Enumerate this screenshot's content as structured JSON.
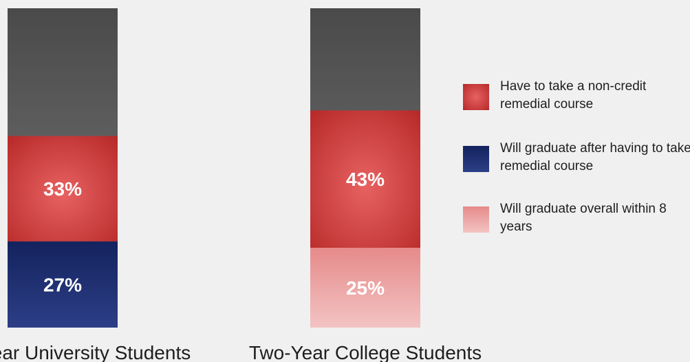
{
  "chart_data": {
    "type": "bar",
    "stacked": true,
    "categories": [
      "Four-Year University Students",
      "Two-Year College Students"
    ],
    "series": [
      {
        "name": "Will graduate after having to take remedial course",
        "values": [
          27,
          null
        ],
        "color": "#1f2f6e",
        "show_value": [
          "27%",
          null
        ]
      },
      {
        "name": "Will graduate overall within 8 years",
        "values": [
          null,
          25
        ],
        "color": "#eea5a5",
        "show_value": [
          null,
          "25%"
        ]
      },
      {
        "name": "Have to take a non-credit remedial course",
        "values": [
          33,
          43
        ],
        "color": "#d23c3c",
        "show_value": [
          "33%",
          "43%"
        ]
      }
    ],
    "ylim": [
      0,
      100
    ],
    "grid": false,
    "legend_position": "right",
    "colors": {
      "remainder": "#5c5c5c",
      "background": "#f0f0f0"
    }
  },
  "legend": [
    {
      "label": "Have to take a non-credit remedial course",
      "color": "#d23c3c"
    },
    {
      "label": "Will graduate after having to take remedial course",
      "color": "#1f2f6e"
    },
    {
      "label": "Will graduate overall within 8 years",
      "color": "#eea5a5"
    }
  ]
}
